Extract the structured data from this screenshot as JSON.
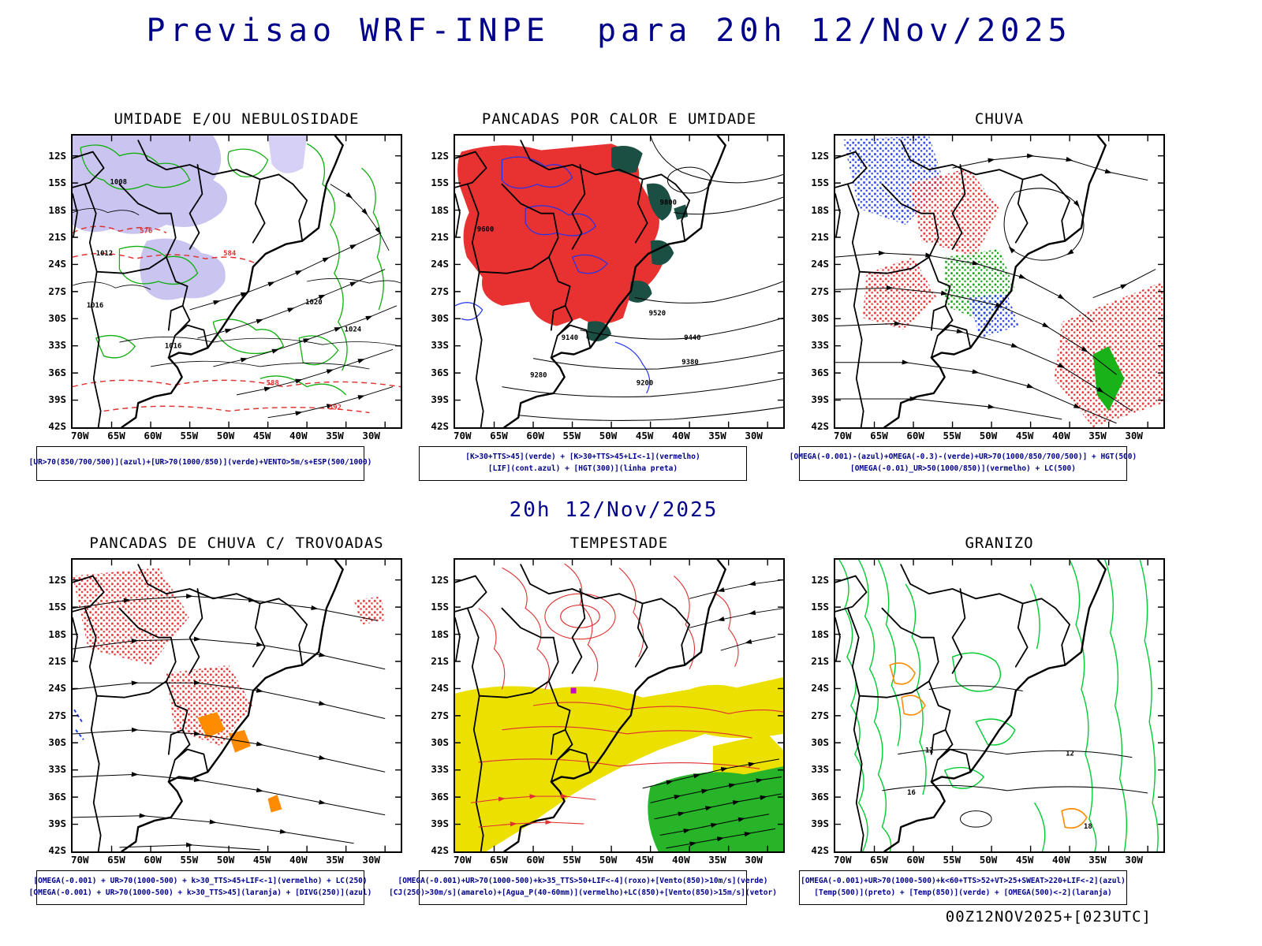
{
  "page": {
    "title": "Previsao WRF-INPE  para 20h 12/Nov/2025",
    "subtitle": "20h 12/Nov/2025",
    "run_footer": "00Z12NOV2025+[023UTC]"
  },
  "colors": {
    "title_text": "#00008b",
    "caption_text": "#00008b",
    "cloud_shading": "#c9c4f0",
    "convective_red": "#e83232",
    "dark_teal": "#1b4f44",
    "yellow_jet": "#ece000",
    "green_wind": "#28b428",
    "green_contour": "#00cc33",
    "orange": "#ff8c00",
    "blue": "#2b44e8"
  },
  "axes": {
    "lat_labels": [
      "12S",
      "15S",
      "18S",
      "21S",
      "24S",
      "27S",
      "30S",
      "33S",
      "36S",
      "39S",
      "42S"
    ],
    "lon_labels": [
      "70W",
      "65W",
      "60W",
      "55W",
      "50W",
      "45W",
      "40W",
      "35W",
      "30W"
    ]
  },
  "panels": [
    {
      "id": "umidade-nebulosidade",
      "title": "UMIDADE E/OU NEBULOSIDADE",
      "caption_lines": [
        "[UR>70(850/700/500)](azul)+[UR>70(1000/850)](verde)+VENTO>5m/s+ESP(500/1000)"
      ],
      "contour_labels": [
        "1008",
        "1012",
        "1016",
        "1016",
        "1020",
        "1024"
      ],
      "red_labels": [
        "576",
        "584",
        "588",
        "592"
      ]
    },
    {
      "id": "pancadas-calor-umidade",
      "title": "PANCADAS POR CALOR E UMIDADE",
      "caption_lines": [
        "[K>30+TTS>45](verde) + [K>30+TTS>45+LI<-1](vermelho)",
        "[LIF](cont.azul) + [HGT(300)](linha preta)"
      ],
      "contour_labels": [
        "9600",
        "9800",
        "9520",
        "9440",
        "9380",
        "9280",
        "9200",
        "9140"
      ]
    },
    {
      "id": "chuva",
      "title": "CHUVA",
      "caption_lines": [
        "[OMEGA(-0.001)-(azul)+OMEGA(-0.3)-(verde)+UR>70(1000/850/700/500)] + HGT(500)",
        "[OMEGA(-0.01)_UR>50(1000/850)](vermelho) + LC(500)"
      ]
    },
    {
      "id": "pancadas-chuva-trovoadas",
      "title": "PANCADAS DE CHUVA C/ TROVOADAS",
      "caption_lines": [
        "[OMEGA(-0.001) + UR>70(1000-500) + k>30_TTS>45+LIF<-1](vermelho) + LC(250)",
        "[OMEGA(-0.001) + UR>70(1000-500) + k>30_TTS>45](laranja) + [DIVG(250)](azul)"
      ]
    },
    {
      "id": "tempestade",
      "title": "TEMPESTADE",
      "caption_lines": [
        "[OMEGA(-0.001)+UR>70(1000-500)+k>35_TTS>50+LIF<-4](roxo)+[Vento(850)>10m/s](verde)",
        "[CJ(250)>30m/s](amarelo)+[Agua_P(40-60mm)](vermelho)+LC(850)+[Vento(850)>15m/s](vetor)"
      ]
    },
    {
      "id": "granizo",
      "title": "GRANIZO",
      "caption_lines": [
        "[OMEGA(-0.001)+UR>70(1000-500)+k<60+TTS>52+VT>25+SWEAT>220+LIF<-2](azul)",
        "[Temp(500)](preto) + [Temp(850)](verde) + [OMEGA(500)<-2](laranja)"
      ],
      "contour_labels": [
        "12",
        "16",
        "12",
        "18"
      ]
    }
  ]
}
